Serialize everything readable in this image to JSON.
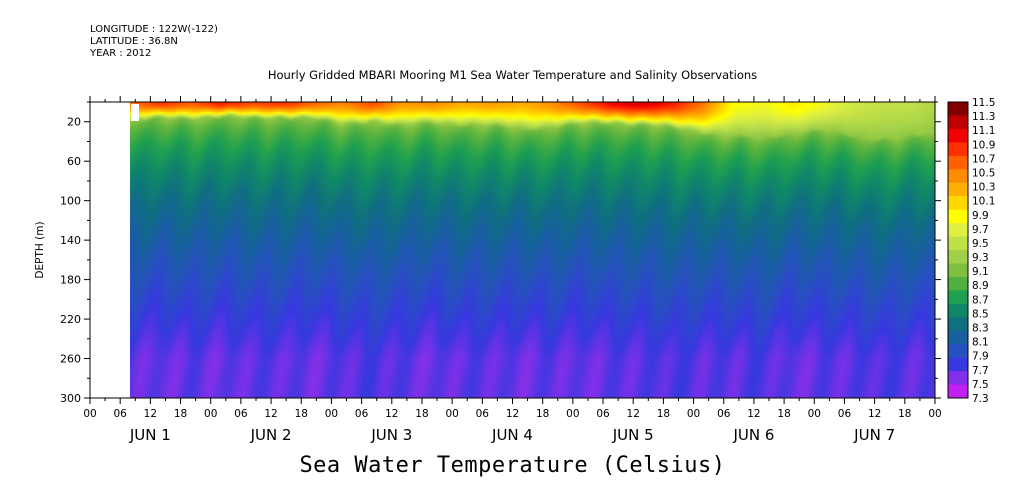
{
  "meta": {
    "longitude": "LONGITUDE : 122W(-122)",
    "latitude": "LATITUDE : 36.8N",
    "year": "YEAR : 2012"
  },
  "chart_data": {
    "type": "heatmap",
    "title": "Hourly Gridded MBARI Mooring M1 Sea Water Temperature and Salinity Observations",
    "xlabel": "",
    "ylabel": "DEPTH (m)",
    "value_label": "Sea Water Temperature (Celsius)",
    "x_range_hours": [
      0,
      168
    ],
    "data_start_hour": 8,
    "y_range_m": [
      0,
      300
    ],
    "y_ticks": [
      20,
      60,
      100,
      140,
      180,
      220,
      260,
      300
    ],
    "hour_ticks": [
      "00",
      "06",
      "12",
      "18",
      "00",
      "06",
      "12",
      "18",
      "00",
      "06",
      "12",
      "18",
      "00",
      "06",
      "12",
      "18",
      "00",
      "06",
      "12",
      "18",
      "00",
      "06",
      "12",
      "18",
      "00",
      "06",
      "12",
      "18",
      "00"
    ],
    "day_labels": [
      "JUN 1",
      "JUN 2",
      "JUN 3",
      "JUN 4",
      "JUN 5",
      "JUN 6",
      "JUN 7"
    ],
    "colorbar_labels": [
      "11.5",
      "11.3",
      "11.1",
      "10.9",
      "10.7",
      "10.5",
      "10.3",
      "10.1",
      "9.9",
      "9.7",
      "9.5",
      "9.3",
      "9.1",
      "8.9",
      "8.7",
      "8.5",
      "8.3",
      "8.1",
      "7.9",
      "7.7",
      "7.5",
      "7.3"
    ],
    "colorbar_colors": [
      "#800000",
      "#bf0000",
      "#f00000",
      "#ff3000",
      "#ff6000",
      "#ff8c00",
      "#ffb000",
      "#ffd800",
      "#ffff00",
      "#e0f040",
      "#c0e048",
      "#a0d048",
      "#80c040",
      "#50b040",
      "#20a050",
      "#108868",
      "#107080",
      "#1860a0",
      "#2850c0",
      "#3838e0",
      "#8030e8",
      "#c020f0"
    ],
    "time_profile": [
      {
        "h": 8,
        "mld": 18,
        "surf": 10.6,
        "deep": 7.6
      },
      {
        "h": 14,
        "mld": 16,
        "surf": 10.9,
        "deep": 7.55
      },
      {
        "h": 20,
        "mld": 15,
        "surf": 10.7,
        "deep": 7.6
      },
      {
        "h": 26,
        "mld": 14,
        "surf": 11.0,
        "deep": 7.55
      },
      {
        "h": 32,
        "mld": 16,
        "surf": 10.8,
        "deep": 7.6
      },
      {
        "h": 38,
        "mld": 14,
        "surf": 10.9,
        "deep": 7.6
      },
      {
        "h": 44,
        "mld": 16,
        "surf": 10.7,
        "deep": 7.55
      },
      {
        "h": 50,
        "mld": 22,
        "surf": 10.5,
        "deep": 7.6
      },
      {
        "h": 56,
        "mld": 18,
        "surf": 10.8,
        "deep": 7.65
      },
      {
        "h": 62,
        "mld": 24,
        "surf": 10.4,
        "deep": 7.6
      },
      {
        "h": 68,
        "mld": 20,
        "surf": 10.5,
        "deep": 7.55
      },
      {
        "h": 74,
        "mld": 22,
        "surf": 10.3,
        "deep": 7.6
      },
      {
        "h": 80,
        "mld": 24,
        "surf": 10.4,
        "deep": 7.6
      },
      {
        "h": 86,
        "mld": 26,
        "surf": 10.3,
        "deep": 7.55
      },
      {
        "h": 92,
        "mld": 24,
        "surf": 10.5,
        "deep": 7.6
      },
      {
        "h": 98,
        "mld": 22,
        "surf": 10.8,
        "deep": 7.55
      },
      {
        "h": 104,
        "mld": 20,
        "surf": 11.1,
        "deep": 7.6
      },
      {
        "h": 110,
        "mld": 22,
        "surf": 11.2,
        "deep": 7.6
      },
      {
        "h": 116,
        "mld": 26,
        "surf": 11.0,
        "deep": 7.65
      },
      {
        "h": 122,
        "mld": 30,
        "surf": 10.6,
        "deep": 7.6
      },
      {
        "h": 128,
        "mld": 34,
        "surf": 9.9,
        "deep": 7.6
      },
      {
        "h": 134,
        "mld": 36,
        "surf": 9.8,
        "deep": 7.65
      },
      {
        "h": 140,
        "mld": 30,
        "surf": 10.0,
        "deep": 7.55
      },
      {
        "h": 146,
        "mld": 28,
        "surf": 9.8,
        "deep": 7.6
      },
      {
        "h": 152,
        "mld": 34,
        "surf": 9.6,
        "deep": 7.6
      },
      {
        "h": 158,
        "mld": 36,
        "surf": 9.5,
        "deep": 7.65
      },
      {
        "h": 164,
        "mld": 34,
        "surf": 9.5,
        "deep": 7.6
      },
      {
        "h": 168,
        "mld": 32,
        "surf": 9.4,
        "deep": 7.6
      }
    ]
  }
}
